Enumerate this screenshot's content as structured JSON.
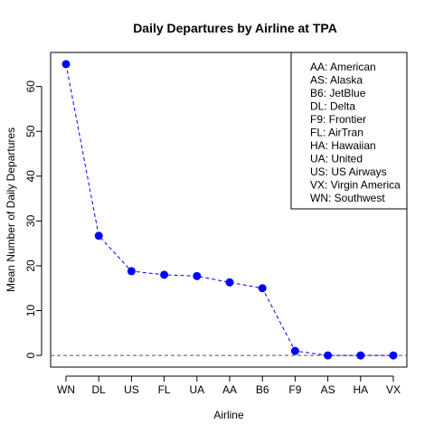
{
  "chart_data": {
    "type": "line",
    "title": "Daily Departures by Airline at TPA",
    "xlabel": "Airline",
    "ylabel": "Mean Number of Daily Departures",
    "categories": [
      "WN",
      "DL",
      "US",
      "FL",
      "UA",
      "AA",
      "B6",
      "F9",
      "AS",
      "HA",
      "VX"
    ],
    "values": [
      65.0,
      26.7,
      18.8,
      18.0,
      17.7,
      16.3,
      15.0,
      1.0,
      0.0,
      0.0,
      0.0
    ],
    "y_ticks": [
      "0",
      "10",
      "20",
      "30",
      "40",
      "50",
      "60"
    ],
    "ylim": [
      -2.6,
      67.6
    ],
    "reference_line": 0,
    "grid": false,
    "legend_position": "top-right",
    "series_color": "#0000ff",
    "reference_color": "#555555",
    "legend": [
      "AA: American",
      "AS: Alaska",
      "B6: JetBlue",
      "DL: Delta",
      "F9: Frontier",
      "FL: AirTran",
      "HA: Hawaiian",
      "UA: United",
      "US: US Airways",
      "VX: Virgin America",
      "WN: Southwest"
    ]
  }
}
